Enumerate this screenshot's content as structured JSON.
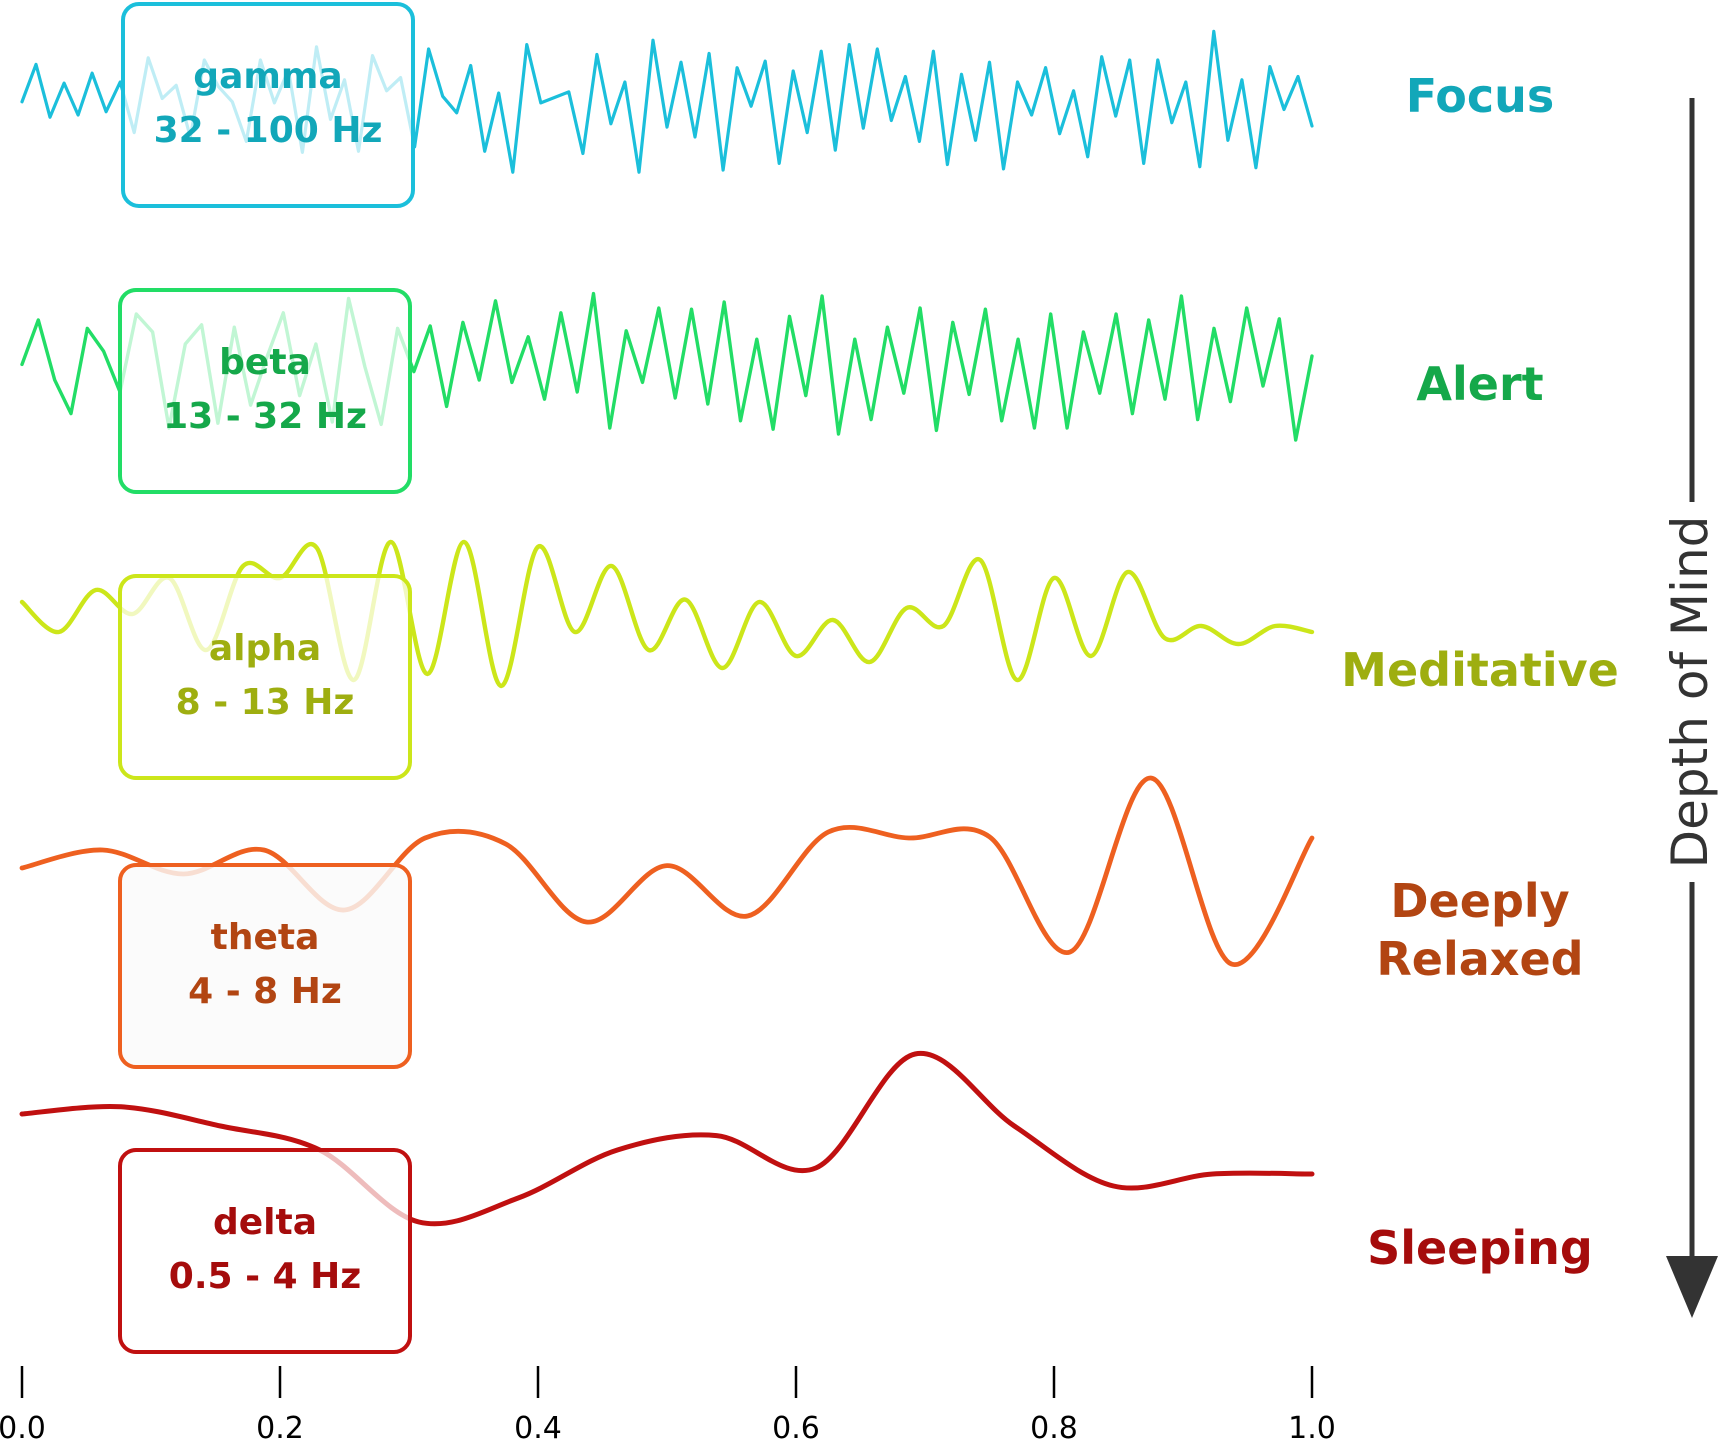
{
  "bands": [
    {
      "id": "gamma",
      "name": "gamma",
      "range": "32 - 100 Hz",
      "state": [
        "Focus"
      ],
      "color": "#1BBFDB",
      "text_color": "#12A7B9",
      "box_fill": "rgba(255,255,255,0.72)",
      "stroke_width": 3.2,
      "points": [
        0.02,
        0.36,
        -0.12,
        0.19,
        -0.1,
        0.28,
        -0.07,
        0.2,
        -0.26,
        0.42,
        0.05,
        0.17,
        -0.3,
        0.4,
        0.16,
        0.02,
        -0.34,
        0.4,
        0.01,
        0.31,
        -0.44,
        0.52,
        -0.14,
        0.22,
        -0.43,
        0.44,
        0.12,
        0.24,
        -0.39,
        0.5,
        0.07,
        -0.08,
        0.35,
        -0.43,
        0.1,
        -0.62,
        0.54,
        0.01,
        0.06,
        0.11,
        -0.45,
        0.45,
        -0.18,
        0.2,
        -0.62,
        0.58,
        -0.21,
        0.38,
        -0.3,
        0.46,
        -0.6,
        0.33,
        -0.02,
        0.39,
        -0.54,
        0.3,
        -0.26,
        0.48,
        -0.42,
        0.54,
        -0.22,
        0.5,
        -0.15,
        0.25,
        -0.34,
        0.48,
        -0.55,
        0.27,
        -0.33,
        0.38,
        -0.59,
        0.2,
        -0.1,
        0.33,
        -0.27,
        0.12,
        -0.48,
        0.43,
        -0.11,
        0.4,
        -0.54,
        0.4,
        -0.17,
        0.2,
        -0.57,
        0.66,
        -0.33,
        0.22,
        -0.58,
        0.34,
        -0.05,
        0.25,
        -0.2
      ]
    },
    {
      "id": "beta",
      "name": "beta",
      "range": "13 - 32 Hz",
      "state": [
        "Alert"
      ],
      "color": "#22DD66",
      "text_color": "#15A84A",
      "box_fill": "rgba(255,255,255,0.72)",
      "stroke_width": 3.4,
      "points": [
        0.03,
        0.4,
        -0.1,
        -0.38,
        0.33,
        0.14,
        -0.2,
        0.45,
        0.3,
        -0.5,
        0.2,
        0.36,
        -0.46,
        0.34,
        -0.31,
        0.09,
        0.46,
        -0.23,
        0.2,
        -0.45,
        0.58,
        0.01,
        -0.47,
        0.33,
        -0.03,
        0.35,
        -0.32,
        0.38,
        -0.1,
        0.56,
        -0.12,
        0.26,
        -0.26,
        0.46,
        -0.2,
        0.62,
        -0.5,
        0.31,
        -0.12,
        0.5,
        -0.25,
        0.49,
        -0.3,
        0.55,
        -0.44,
        0.24,
        -0.51,
        0.43,
        -0.23,
        0.6,
        -0.55,
        0.24,
        -0.43,
        0.34,
        -0.21,
        0.5,
        -0.52,
        0.38,
        -0.22,
        0.49,
        -0.44,
        0.24,
        -0.5,
        0.45,
        -0.5,
        0.3,
        -0.21,
        0.45,
        -0.38,
        0.4,
        -0.26,
        0.6,
        -0.43,
        0.33,
        -0.28,
        0.5,
        -0.15,
        0.41,
        -0.6,
        0.1
      ]
    },
    {
      "id": "alpha",
      "name": "alpha",
      "range": "8 - 13 Hz",
      "state": [
        "Meditative"
      ],
      "color": "#CCE61A",
      "text_color": "#9EAE10",
      "box_fill": "rgba(255,255,255,0.72)",
      "stroke_width": 4.4,
      "points": [
        0.1,
        -0.15,
        0.2,
        0.0,
        0.3,
        -0.3,
        0.4,
        0.3,
        0.55,
        -0.55,
        0.6,
        -0.5,
        0.6,
        -0.6,
        0.56,
        -0.15,
        0.4,
        -0.3,
        0.12,
        -0.45,
        0.1,
        -0.35,
        -0.05,
        -0.4,
        0.05,
        -0.1,
        0.45,
        -0.55,
        0.3,
        -0.35,
        0.35,
        -0.2,
        -0.1,
        -0.25,
        -0.1,
        -0.15
      ]
    },
    {
      "id": "theta",
      "name": "theta",
      "range": "4 - 8 Hz",
      "state": [
        "Deeply",
        "Relaxed"
      ],
      "color": "#EE6020",
      "text_color": "#B24512",
      "box_fill": "rgba(250,250,250,0.82)",
      "stroke_width": 4.8,
      "points": [
        0.1,
        0.25,
        0.05,
        0.25,
        -0.25,
        0.35,
        0.3,
        -0.35,
        0.12,
        -0.3,
        0.4,
        0.35,
        0.36,
        -0.6,
        0.85,
        -0.7,
        0.35
      ]
    },
    {
      "id": "delta",
      "name": "delta",
      "range": "0.5 - 4 Hz",
      "state": [
        "Sleeping"
      ],
      "color": "#C01010",
      "text_color": "#A50C0C",
      "box_fill": "rgba(255,255,255,0.72)",
      "stroke_width": 5.0,
      "points": [
        0.3,
        0.36,
        0.2,
        0.0,
        -0.6,
        -0.4,
        0.0,
        0.12,
        -0.15,
        0.8,
        0.2,
        -0.3,
        -0.2,
        -0.2
      ]
    }
  ],
  "axis": {
    "ticks": [
      "0.0",
      "0.2",
      "0.4",
      "0.6",
      "0.8",
      "1.0"
    ],
    "values": [
      0.0,
      0.2,
      0.4,
      0.6,
      0.8,
      1.0
    ]
  },
  "depth_label": "Depth of Mind",
  "arrow_color": "#333333"
}
